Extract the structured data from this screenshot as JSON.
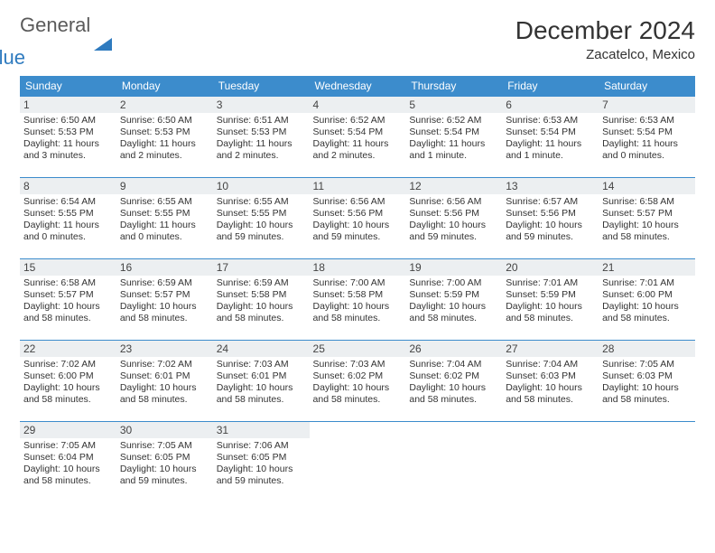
{
  "brand": {
    "first": "General",
    "second": "Blue"
  },
  "title": "December 2024",
  "location": "Zacatelco, Mexico",
  "colors": {
    "header_bg": "#3c8ccc",
    "header_text": "#ffffff",
    "daynum_bg": "#eceff1",
    "border": "#3c8ccc",
    "brand_blue": "#2f7bbf",
    "brand_gray": "#5a5a5a",
    "text": "#333333"
  },
  "daysOfWeek": [
    "Sunday",
    "Monday",
    "Tuesday",
    "Wednesday",
    "Thursday",
    "Friday",
    "Saturday"
  ],
  "weeks": [
    [
      {
        "n": "1",
        "sr": "6:50 AM",
        "ss": "5:53 PM",
        "dl": "11 hours and 3 minutes."
      },
      {
        "n": "2",
        "sr": "6:50 AM",
        "ss": "5:53 PM",
        "dl": "11 hours and 2 minutes."
      },
      {
        "n": "3",
        "sr": "6:51 AM",
        "ss": "5:53 PM",
        "dl": "11 hours and 2 minutes."
      },
      {
        "n": "4",
        "sr": "6:52 AM",
        "ss": "5:54 PM",
        "dl": "11 hours and 2 minutes."
      },
      {
        "n": "5",
        "sr": "6:52 AM",
        "ss": "5:54 PM",
        "dl": "11 hours and 1 minute."
      },
      {
        "n": "6",
        "sr": "6:53 AM",
        "ss": "5:54 PM",
        "dl": "11 hours and 1 minute."
      },
      {
        "n": "7",
        "sr": "6:53 AM",
        "ss": "5:54 PM",
        "dl": "11 hours and 0 minutes."
      }
    ],
    [
      {
        "n": "8",
        "sr": "6:54 AM",
        "ss": "5:55 PM",
        "dl": "11 hours and 0 minutes."
      },
      {
        "n": "9",
        "sr": "6:55 AM",
        "ss": "5:55 PM",
        "dl": "11 hours and 0 minutes."
      },
      {
        "n": "10",
        "sr": "6:55 AM",
        "ss": "5:55 PM",
        "dl": "10 hours and 59 minutes."
      },
      {
        "n": "11",
        "sr": "6:56 AM",
        "ss": "5:56 PM",
        "dl": "10 hours and 59 minutes."
      },
      {
        "n": "12",
        "sr": "6:56 AM",
        "ss": "5:56 PM",
        "dl": "10 hours and 59 minutes."
      },
      {
        "n": "13",
        "sr": "6:57 AM",
        "ss": "5:56 PM",
        "dl": "10 hours and 59 minutes."
      },
      {
        "n": "14",
        "sr": "6:58 AM",
        "ss": "5:57 PM",
        "dl": "10 hours and 58 minutes."
      }
    ],
    [
      {
        "n": "15",
        "sr": "6:58 AM",
        "ss": "5:57 PM",
        "dl": "10 hours and 58 minutes."
      },
      {
        "n": "16",
        "sr": "6:59 AM",
        "ss": "5:57 PM",
        "dl": "10 hours and 58 minutes."
      },
      {
        "n": "17",
        "sr": "6:59 AM",
        "ss": "5:58 PM",
        "dl": "10 hours and 58 minutes."
      },
      {
        "n": "18",
        "sr": "7:00 AM",
        "ss": "5:58 PM",
        "dl": "10 hours and 58 minutes."
      },
      {
        "n": "19",
        "sr": "7:00 AM",
        "ss": "5:59 PM",
        "dl": "10 hours and 58 minutes."
      },
      {
        "n": "20",
        "sr": "7:01 AM",
        "ss": "5:59 PM",
        "dl": "10 hours and 58 minutes."
      },
      {
        "n": "21",
        "sr": "7:01 AM",
        "ss": "6:00 PM",
        "dl": "10 hours and 58 minutes."
      }
    ],
    [
      {
        "n": "22",
        "sr": "7:02 AM",
        "ss": "6:00 PM",
        "dl": "10 hours and 58 minutes."
      },
      {
        "n": "23",
        "sr": "7:02 AM",
        "ss": "6:01 PM",
        "dl": "10 hours and 58 minutes."
      },
      {
        "n": "24",
        "sr": "7:03 AM",
        "ss": "6:01 PM",
        "dl": "10 hours and 58 minutes."
      },
      {
        "n": "25",
        "sr": "7:03 AM",
        "ss": "6:02 PM",
        "dl": "10 hours and 58 minutes."
      },
      {
        "n": "26",
        "sr": "7:04 AM",
        "ss": "6:02 PM",
        "dl": "10 hours and 58 minutes."
      },
      {
        "n": "27",
        "sr": "7:04 AM",
        "ss": "6:03 PM",
        "dl": "10 hours and 58 minutes."
      },
      {
        "n": "28",
        "sr": "7:05 AM",
        "ss": "6:03 PM",
        "dl": "10 hours and 58 minutes."
      }
    ],
    [
      {
        "n": "29",
        "sr": "7:05 AM",
        "ss": "6:04 PM",
        "dl": "10 hours and 58 minutes."
      },
      {
        "n": "30",
        "sr": "7:05 AM",
        "ss": "6:05 PM",
        "dl": "10 hours and 59 minutes."
      },
      {
        "n": "31",
        "sr": "7:06 AM",
        "ss": "6:05 PM",
        "dl": "10 hours and 59 minutes."
      },
      null,
      null,
      null,
      null
    ]
  ],
  "labels": {
    "sunrise": "Sunrise:",
    "sunset": "Sunset:",
    "daylight": "Daylight:"
  }
}
